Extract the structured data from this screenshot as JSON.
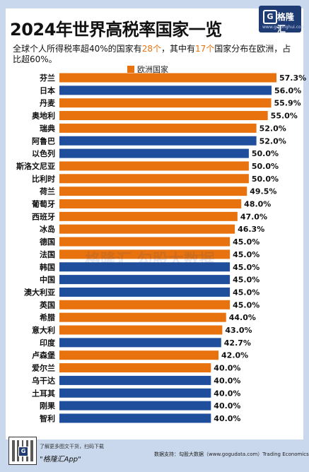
{
  "header": {
    "title": "2024年世界高税率国家一览",
    "logo_mark": "G",
    "logo_text": "格隆汇",
    "logo_url": "www.gelonghui.com"
  },
  "subtitle": {
    "part1": "全球个人所得税率超40%的国家有",
    "count1": "28个",
    "part2": "，其中有",
    "count2": "17个",
    "part3": "国家分布在欧洲，占比超60%。"
  },
  "watermark": "格隆汇    勾股大数据",
  "colors": {
    "europe": "#e8730e",
    "other": "#1f4e9c"
  },
  "chart_data": {
    "type": "bar",
    "orientation": "horizontal",
    "legend": [
      {
        "name": "欧洲国家",
        "color": "#e8730e"
      }
    ],
    "categories": [
      "芬兰",
      "日本",
      "丹麦",
      "奥地利",
      "瑞典",
      "阿鲁巴",
      "以色列",
      "斯洛文尼亚",
      "比利时",
      "荷兰",
      "葡萄牙",
      "西班牙",
      "冰岛",
      "德国",
      "法国",
      "韩国",
      "中国",
      "澳大利亚",
      "英国",
      "希腊",
      "意大利",
      "印度",
      "卢森堡",
      "爱尔兰",
      "乌干达",
      "土耳其",
      "刚果",
      "智利"
    ],
    "values": [
      57.3,
      56.0,
      55.9,
      55.0,
      52.0,
      52.0,
      50.0,
      50.0,
      50.0,
      49.5,
      48.0,
      47.0,
      46.3,
      45.0,
      45.0,
      45.0,
      45.0,
      45.0,
      45.0,
      44.0,
      43.0,
      42.7,
      42.0,
      40.0,
      40.0,
      40.0,
      40.0,
      40.0
    ],
    "value_labels": [
      "57.3%",
      "56.0%",
      "55.9%",
      "55.0%",
      "52.0%",
      "52.0%",
      "50.0%",
      "50.0%",
      "50.0%",
      "49.5%",
      "48.0%",
      "47.0%",
      "46.3%",
      "45.0%",
      "45.0%",
      "45.0%",
      "45.0%",
      "45.0%",
      "45.0%",
      "44.0%",
      "43.0%",
      "42.7%",
      "42.0%",
      "40.0%",
      "40.0%",
      "40.0%",
      "40.0%",
      "40.0%"
    ],
    "europe": [
      true,
      false,
      true,
      true,
      true,
      false,
      false,
      true,
      true,
      true,
      true,
      true,
      true,
      true,
      true,
      false,
      false,
      false,
      true,
      true,
      true,
      false,
      true,
      true,
      false,
      false,
      false,
      false
    ],
    "xlim": [
      0,
      57.3
    ]
  },
  "footer": {
    "qr_logo": "G",
    "line1": "了解更多图文干货，扫码下载",
    "app": "\"格隆汇App\"",
    "source": "数据支持：勾股大数据（www.gogudata.com）Trading Economics"
  }
}
